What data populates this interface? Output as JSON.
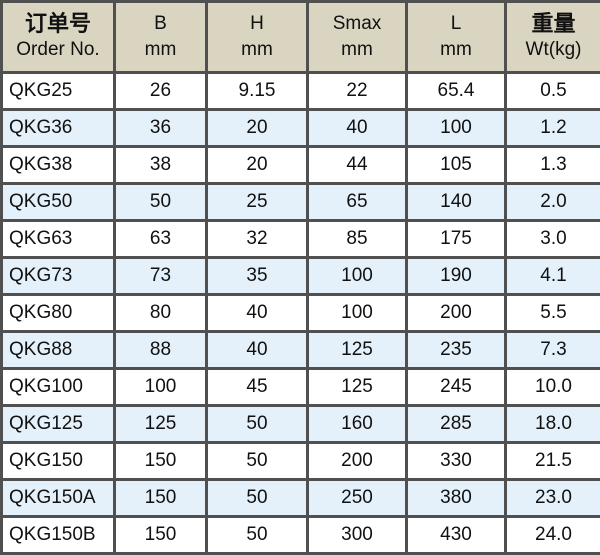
{
  "header": [
    {
      "line1": "订单号",
      "line2": "Order No."
    },
    {
      "line1": "B",
      "line2": "mm"
    },
    {
      "line1": "H",
      "line2": "mm"
    },
    {
      "line1": "Smax",
      "line2": "mm"
    },
    {
      "line1": "L",
      "line2": "mm"
    },
    {
      "line1": "重量",
      "line2": "Wt(kg)"
    }
  ],
  "rows": [
    [
      "QKG25",
      "26",
      "9.15",
      "22",
      "65.4",
      "0.5"
    ],
    [
      "QKG36",
      "36",
      "20",
      "40",
      "100",
      "1.2"
    ],
    [
      "QKG38",
      "38",
      "20",
      "44",
      "105",
      "1.3"
    ],
    [
      "QKG50",
      "50",
      "25",
      "65",
      "140",
      "2.0"
    ],
    [
      "QKG63",
      "63",
      "32",
      "85",
      "175",
      "3.0"
    ],
    [
      "QKG73",
      "73",
      "35",
      "100",
      "190",
      "4.1"
    ],
    [
      "QKG80",
      "80",
      "40",
      "100",
      "200",
      "5.5"
    ],
    [
      "QKG88",
      "88",
      "40",
      "125",
      "235",
      "7.3"
    ],
    [
      "QKG100",
      "100",
      "45",
      "125",
      "245",
      "10.0"
    ],
    [
      "QKG125",
      "125",
      "50",
      "160",
      "285",
      "18.0"
    ],
    [
      "QKG150",
      "150",
      "50",
      "200",
      "330",
      "21.5"
    ],
    [
      "QKG150A",
      "150",
      "50",
      "250",
      "380",
      "23.0"
    ],
    [
      "QKG150B",
      "150",
      "50",
      "300",
      "430",
      "24.0"
    ]
  ],
  "colors": {
    "header_bg": "#d9d5c1",
    "alt_row_bg": "#e4f1fb",
    "border": "#505050"
  }
}
